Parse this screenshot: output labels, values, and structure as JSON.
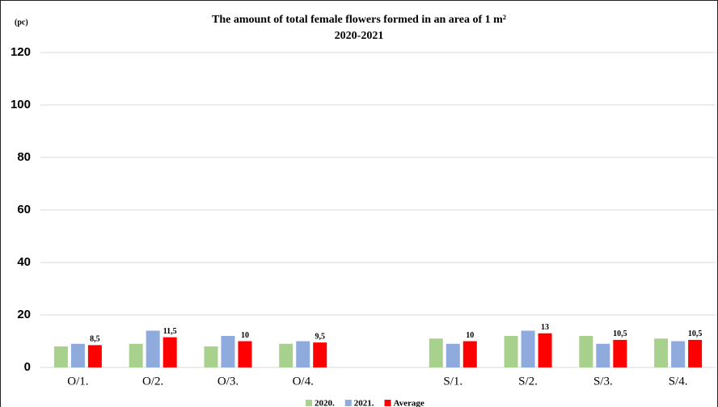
{
  "chart_data": {
    "type": "bar",
    "title": "The amount of total female flowers formed in an area of 1 m²",
    "subtitle": "2020-2021",
    "y_label": "(pc)",
    "categories": [
      "O/1.",
      "O/2.",
      "O/3.",
      "O/4.",
      null,
      "S/1.",
      "S/2.",
      "S/3.",
      "S/4."
    ],
    "series": [
      {
        "name": "2020.",
        "color": "#a9d18e",
        "values": [
          8,
          9,
          8,
          9,
          null,
          11,
          12,
          12,
          11
        ]
      },
      {
        "name": "2021.",
        "color": "#8faadc",
        "values": [
          9,
          14,
          12,
          10,
          null,
          9,
          14,
          9,
          10
        ]
      },
      {
        "name": "Average",
        "color": "#ff0000",
        "values": [
          8.5,
          11.5,
          10,
          9.5,
          null,
          10,
          13,
          10.5,
          10.5
        ],
        "value_labels": [
          "8,5",
          "11,5",
          "10",
          "9,5",
          null,
          "10",
          "13",
          "10,5",
          "10,5"
        ]
      }
    ],
    "ylim": [
      0,
      120
    ],
    "yticks": [
      0,
      20,
      40,
      60,
      80,
      100,
      120
    ],
    "grid": true,
    "legend": "bottom"
  }
}
